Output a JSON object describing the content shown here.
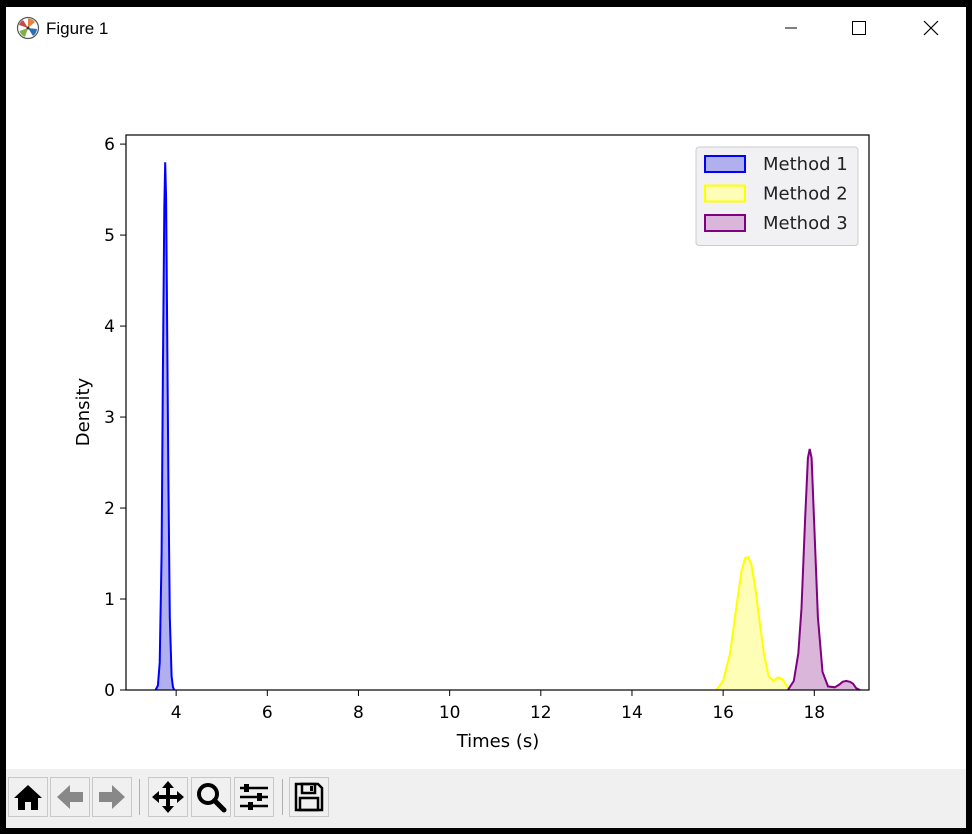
{
  "window": {
    "title": "Figure 1",
    "minimize_icon": "minimize-icon",
    "maximize_icon": "maximize-icon",
    "close_icon": "close-icon"
  },
  "toolbar": {
    "buttons": [
      {
        "name": "home-button",
        "icon": "home-icon"
      },
      {
        "name": "back-button",
        "icon": "back-arrow-icon"
      },
      {
        "name": "forward-button",
        "icon": "forward-arrow-icon"
      },
      {
        "name": "pan-button",
        "icon": "move-icon"
      },
      {
        "name": "zoom-button",
        "icon": "magnifier-icon"
      },
      {
        "name": "configure-subplots-button",
        "icon": "sliders-icon"
      },
      {
        "name": "save-button",
        "icon": "floppy-disk-icon"
      }
    ]
  },
  "chart_data": {
    "type": "area",
    "title": "",
    "xlabel": "Times (s)",
    "ylabel": "Density",
    "xlim": [
      2.9,
      19.2
    ],
    "ylim": [
      0,
      6.1
    ],
    "xticks": [
      4,
      6,
      8,
      10,
      12,
      14,
      16,
      18
    ],
    "yticks": [
      0,
      1,
      2,
      3,
      4,
      5,
      6
    ],
    "legend_position": "top-right",
    "grid": false,
    "series": [
      {
        "name": "Method 1",
        "line_color": "#0000ff",
        "fill_color": "#b0b0ee",
        "x": [
          3.55,
          3.6,
          3.64,
          3.68,
          3.71,
          3.74,
          3.76,
          3.78,
          3.8,
          3.83,
          3.86,
          3.9,
          3.93,
          3.96
        ],
        "y": [
          0,
          0.05,
          0.3,
          1.5,
          3.5,
          5.3,
          5.8,
          5.4,
          4.2,
          2.3,
          0.8,
          0.15,
          0.03,
          0
        ]
      },
      {
        "name": "Method 2",
        "line_color": "#ffff00",
        "fill_color": "#fefeb6",
        "x": [
          15.85,
          16.0,
          16.15,
          16.3,
          16.4,
          16.48,
          16.55,
          16.62,
          16.7,
          16.8,
          16.9,
          17.0,
          17.1,
          17.2,
          17.3,
          17.4,
          17.45
        ],
        "y": [
          0,
          0.1,
          0.4,
          0.95,
          1.3,
          1.45,
          1.46,
          1.38,
          1.15,
          0.75,
          0.38,
          0.15,
          0.1,
          0.14,
          0.12,
          0.04,
          0
        ]
      },
      {
        "name": "Method 3",
        "line_color": "#800080",
        "fill_color": "#dab6da",
        "x": [
          17.42,
          17.55,
          17.65,
          17.72,
          17.8,
          17.86,
          17.9,
          17.94,
          18.0,
          18.08,
          18.18,
          18.3,
          18.45,
          18.55,
          18.62,
          18.7,
          18.78,
          18.85,
          18.92,
          19.0
        ],
        "y": [
          0,
          0.1,
          0.4,
          0.9,
          1.9,
          2.55,
          2.65,
          2.55,
          1.8,
          0.8,
          0.2,
          0.04,
          0.03,
          0.06,
          0.09,
          0.1,
          0.09,
          0.07,
          0.02,
          0
        ]
      }
    ]
  }
}
